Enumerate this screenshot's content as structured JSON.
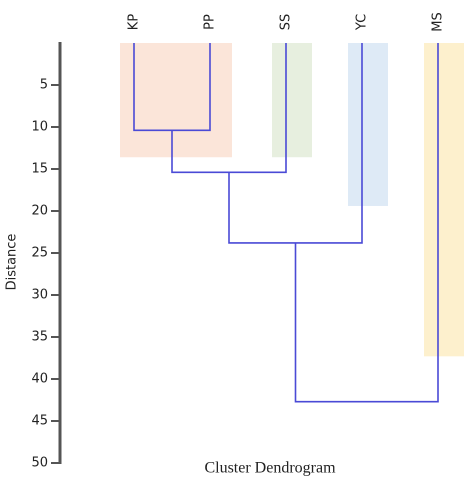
{
  "chart_data": {
    "type": "dendrogram",
    "title": "Cluster Dendrogram",
    "y_label": "Distance",
    "leaves": [
      "KP",
      "PP",
      "SS",
      "YC",
      "MS"
    ],
    "merges": [
      {
        "join": [
          [
            "KP"
          ],
          [
            "PP"
          ]
        ],
        "height": 10.4
      },
      {
        "join": [
          [
            "KP",
            "PP"
          ],
          [
            "SS"
          ]
        ],
        "height": 15.4
      },
      {
        "join": [
          [
            "KP",
            "PP",
            "SS"
          ],
          [
            "YC"
          ]
        ],
        "height": 23.8
      },
      {
        "join": [
          [
            "KP",
            "PP",
            "SS",
            "YC"
          ],
          [
            "MS"
          ]
        ],
        "height": 42.7
      }
    ],
    "line_color": "#4a4ad6",
    "highlights": [
      {
        "leaves": [
          "KP",
          "PP"
        ],
        "height": 13.6,
        "color": "#fbe5d9"
      },
      {
        "leaves": [
          "SS"
        ],
        "height": 13.6,
        "color": "#e7efdf"
      },
      {
        "leaves": [
          "YC"
        ],
        "height": 19.4,
        "color": "#deeaf6"
      },
      {
        "leaves": [
          "MS"
        ],
        "height": 37.3,
        "color": "#fdf0cd"
      }
    ],
    "ylim": [
      0,
      50
    ],
    "yticks": [
      5,
      10,
      15,
      20,
      25,
      30,
      35,
      40,
      45,
      50
    ]
  }
}
